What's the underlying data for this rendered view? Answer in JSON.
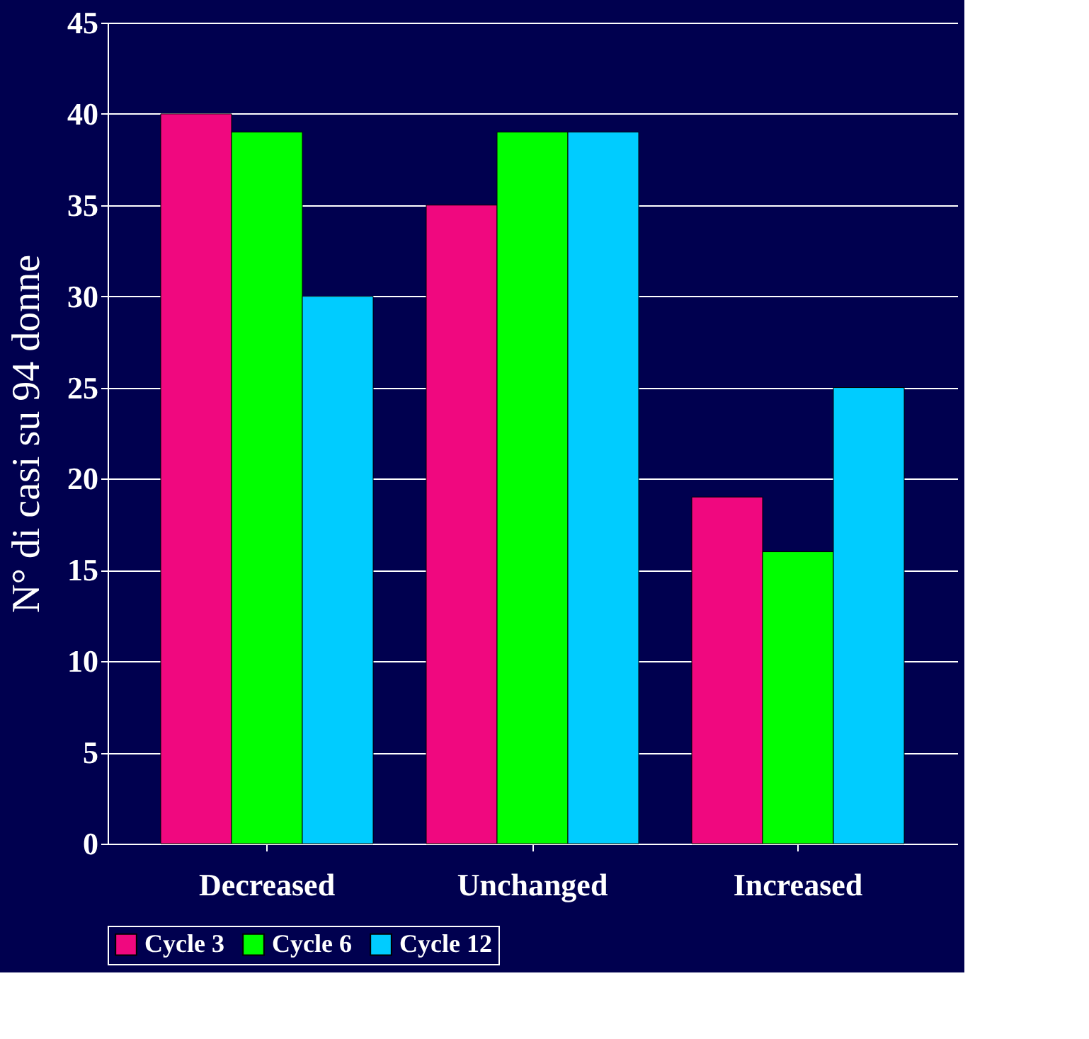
{
  "chart_data": {
    "type": "bar",
    "ylabel": "N° di casi su 94 donne",
    "categories": [
      "Decreased",
      "Unchanged",
      "Increased"
    ],
    "series": [
      {
        "name": "Cycle 3",
        "color": "#f0087f",
        "values": [
          40,
          35,
          19
        ]
      },
      {
        "name": "Cycle 6",
        "color": "#00ff00",
        "values": [
          39,
          39,
          16
        ]
      },
      {
        "name": "Cycle 12",
        "color": "#00ccff",
        "values": [
          30,
          39,
          25
        ]
      }
    ],
    "ylim": [
      0,
      45
    ],
    "yticks": [
      0,
      5,
      10,
      15,
      20,
      25,
      30,
      35,
      40,
      45
    ],
    "grid": "y",
    "legend": "bottom"
  }
}
